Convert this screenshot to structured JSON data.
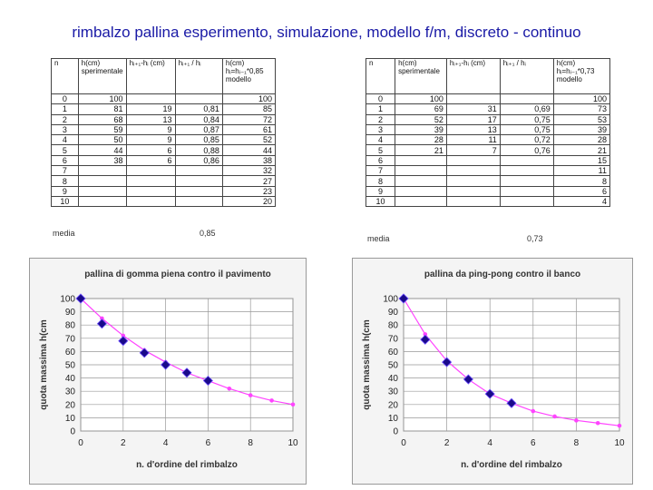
{
  "title": "rimbalzo pallina esperimento, simulazione, modello f/m, discreto - continuo",
  "tables": [
    {
      "headers": [
        "n",
        "h(cm) sperimentale",
        "hᵢ₊₁-hᵢ (cm)",
        "hᵢ₊₁ / hᵢ",
        "h(cm) hᵢ=hᵢ₋₁*0,85 modello"
      ],
      "rows": [
        [
          "0",
          "100",
          "",
          "",
          "100"
        ],
        [
          "1",
          "81",
          "19",
          "0,81",
          "85"
        ],
        [
          "2",
          "68",
          "13",
          "0,84",
          "72"
        ],
        [
          "3",
          "59",
          "9",
          "0,87",
          "61"
        ],
        [
          "4",
          "50",
          "9",
          "0,85",
          "52"
        ],
        [
          "5",
          "44",
          "6",
          "0,88",
          "44"
        ],
        [
          "6",
          "38",
          "6",
          "0,86",
          "38"
        ],
        [
          "7",
          "",
          "",
          "",
          "32"
        ],
        [
          "8",
          "",
          "",
          "",
          "27"
        ],
        [
          "9",
          "",
          "",
          "",
          "23"
        ],
        [
          "10",
          "",
          "",
          "",
          "20"
        ]
      ],
      "media_label": "media",
      "media_value": "0,85"
    },
    {
      "headers": [
        "n",
        "h(cm) sperimentale",
        "hᵢ₊₁-hᵢ (cm)",
        "hᵢ₊₁ / hᵢ",
        "h(cm) hᵢ=hᵢ₋₁*0,73 modello"
      ],
      "rows": [
        [
          "0",
          "100",
          "",
          "",
          "100"
        ],
        [
          "1",
          "69",
          "31",
          "0,69",
          "73"
        ],
        [
          "2",
          "52",
          "17",
          "0,75",
          "53"
        ],
        [
          "3",
          "39",
          "13",
          "0,75",
          "39"
        ],
        [
          "4",
          "28",
          "11",
          "0,72",
          "28"
        ],
        [
          "5",
          "21",
          "7",
          "0,76",
          "21"
        ],
        [
          "6",
          "",
          "",
          "",
          "15"
        ],
        [
          "7",
          "",
          "",
          "",
          "11"
        ],
        [
          "8",
          "",
          "",
          "",
          "8"
        ],
        [
          "9",
          "",
          "",
          "",
          "6"
        ],
        [
          "10",
          "",
          "",
          "",
          "4"
        ]
      ],
      "media_label": "media",
      "media_value": "0,73"
    }
  ],
  "chart_data": [
    {
      "type": "scatter",
      "title": "pallina di gomma piena contro il pavimento",
      "xlabel": "n. d'ordine del rimbalzo",
      "ylabel": "quota massima h(cm",
      "xlim": [
        0,
        10
      ],
      "ylim": [
        0,
        100
      ],
      "xticks": [
        0,
        2,
        4,
        6,
        8,
        10
      ],
      "yticks": [
        0,
        10,
        20,
        30,
        40,
        50,
        60,
        70,
        80,
        90,
        100
      ],
      "grid": true,
      "series": [
        {
          "x": [
            0,
            1,
            2,
            3,
            4,
            5,
            6
          ],
          "y": [
            100,
            81,
            68,
            59,
            50,
            44,
            38
          ],
          "marker": "diamond",
          "color": "#1a0a8a"
        },
        {
          "x": [
            0,
            1,
            2,
            3,
            4,
            5,
            6,
            7,
            8,
            9,
            10
          ],
          "y": [
            100,
            85,
            72,
            61,
            52,
            44,
            38,
            32,
            27,
            23,
            20
          ],
          "marker": "dot",
          "line": true,
          "color": "#ff44ff"
        }
      ]
    },
    {
      "type": "scatter",
      "title": "pallina da ping-pong contro il banco",
      "xlabel": "n. d'ordine del rimbalzo",
      "ylabel": "quota massima h(cm",
      "xlim": [
        0,
        10
      ],
      "ylim": [
        0,
        100
      ],
      "xticks": [
        0,
        2,
        4,
        6,
        8,
        10
      ],
      "yticks": [
        0,
        10,
        20,
        30,
        40,
        50,
        60,
        70,
        80,
        90,
        100
      ],
      "grid": true,
      "series": [
        {
          "x": [
            0,
            1,
            2,
            3,
            4,
            5
          ],
          "y": [
            100,
            69,
            52,
            39,
            28,
            21
          ],
          "marker": "diamond",
          "color": "#1a0a8a"
        },
        {
          "x": [
            0,
            1,
            2,
            3,
            4,
            5,
            6,
            7,
            8,
            9,
            10
          ],
          "y": [
            100,
            73,
            53,
            39,
            28,
            21,
            15,
            11,
            8,
            6,
            4
          ],
          "marker": "dot",
          "line": true,
          "color": "#ff44ff"
        }
      ]
    }
  ]
}
